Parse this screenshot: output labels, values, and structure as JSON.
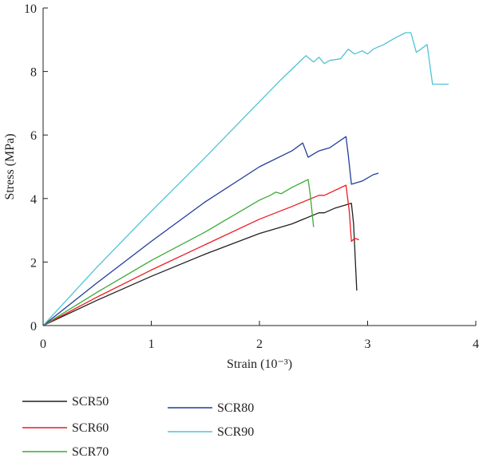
{
  "chart_data": {
    "type": "line",
    "xlabel": "Strain (10⁻³)",
    "ylabel": "Stress (MPa)",
    "xlim": [
      0,
      4
    ],
    "ylim": [
      0,
      10
    ],
    "xticks": [
      0,
      1,
      2,
      3,
      4
    ],
    "yticks": [
      0,
      2,
      4,
      6,
      8,
      10
    ],
    "x_tick_labels": [
      "0",
      "1",
      "2",
      "3",
      "4"
    ],
    "y_tick_labels": [
      "0",
      "2",
      "4",
      "6",
      "8",
      "10"
    ],
    "grid": false,
    "legend_position": "bottom-left, below plot",
    "series": [
      {
        "name": "SCR50",
        "color": "#231f20",
        "points": [
          [
            0,
            0
          ],
          [
            0.5,
            0.8
          ],
          [
            1.0,
            1.55
          ],
          [
            1.5,
            2.25
          ],
          [
            2.0,
            2.9
          ],
          [
            2.3,
            3.2
          ],
          [
            2.55,
            3.55
          ],
          [
            2.6,
            3.55
          ],
          [
            2.7,
            3.7
          ],
          [
            2.85,
            3.85
          ],
          [
            2.87,
            3.2
          ],
          [
            2.9,
            1.1
          ]
        ]
      },
      {
        "name": "SCR60",
        "color": "#ed1c24",
        "points": [
          [
            0,
            0
          ],
          [
            0.5,
            0.9
          ],
          [
            1.0,
            1.75
          ],
          [
            1.5,
            2.55
          ],
          [
            2.0,
            3.35
          ],
          [
            2.3,
            3.75
          ],
          [
            2.55,
            4.1
          ],
          [
            2.6,
            4.1
          ],
          [
            2.8,
            4.42
          ],
          [
            2.83,
            3.6
          ],
          [
            2.85,
            2.65
          ],
          [
            2.88,
            2.75
          ],
          [
            2.92,
            2.7
          ]
        ]
      },
      {
        "name": "SCR70",
        "color": "#3aaa35",
        "points": [
          [
            0,
            0
          ],
          [
            0.5,
            1.05
          ],
          [
            1.0,
            2.05
          ],
          [
            1.5,
            2.95
          ],
          [
            2.0,
            3.95
          ],
          [
            2.1,
            4.1
          ],
          [
            2.15,
            4.2
          ],
          [
            2.2,
            4.15
          ],
          [
            2.3,
            4.35
          ],
          [
            2.45,
            4.6
          ],
          [
            2.47,
            4.1
          ],
          [
            2.5,
            3.1
          ]
        ]
      },
      {
        "name": "SCR80",
        "color": "#213e99",
        "points": [
          [
            0,
            0
          ],
          [
            0.5,
            1.35
          ],
          [
            1.0,
            2.65
          ],
          [
            1.5,
            3.9
          ],
          [
            2.0,
            5.0
          ],
          [
            2.3,
            5.5
          ],
          [
            2.4,
            5.75
          ],
          [
            2.45,
            5.3
          ],
          [
            2.55,
            5.5
          ],
          [
            2.65,
            5.6
          ],
          [
            2.8,
            5.95
          ],
          [
            2.82,
            5.4
          ],
          [
            2.85,
            4.45
          ],
          [
            2.95,
            4.55
          ],
          [
            3.05,
            4.75
          ],
          [
            3.1,
            4.8
          ]
        ]
      },
      {
        "name": "SCR90",
        "color": "#4fc3d5",
        "points": [
          [
            0,
            0
          ],
          [
            0.5,
            1.85
          ],
          [
            1.0,
            3.6
          ],
          [
            1.5,
            5.3
          ],
          [
            2.0,
            7.05
          ],
          [
            2.2,
            7.75
          ],
          [
            2.43,
            8.5
          ],
          [
            2.5,
            8.3
          ],
          [
            2.55,
            8.45
          ],
          [
            2.6,
            8.25
          ],
          [
            2.65,
            8.35
          ],
          [
            2.75,
            8.4
          ],
          [
            2.82,
            8.7
          ],
          [
            2.88,
            8.55
          ],
          [
            2.95,
            8.65
          ],
          [
            3.0,
            8.55
          ],
          [
            3.05,
            8.7
          ],
          [
            3.15,
            8.85
          ],
          [
            3.25,
            9.05
          ],
          [
            3.35,
            9.22
          ],
          [
            3.4,
            9.22
          ],
          [
            3.45,
            8.6
          ],
          [
            3.55,
            8.85
          ],
          [
            3.6,
            7.6
          ],
          [
            3.75,
            7.6
          ]
        ]
      }
    ]
  }
}
